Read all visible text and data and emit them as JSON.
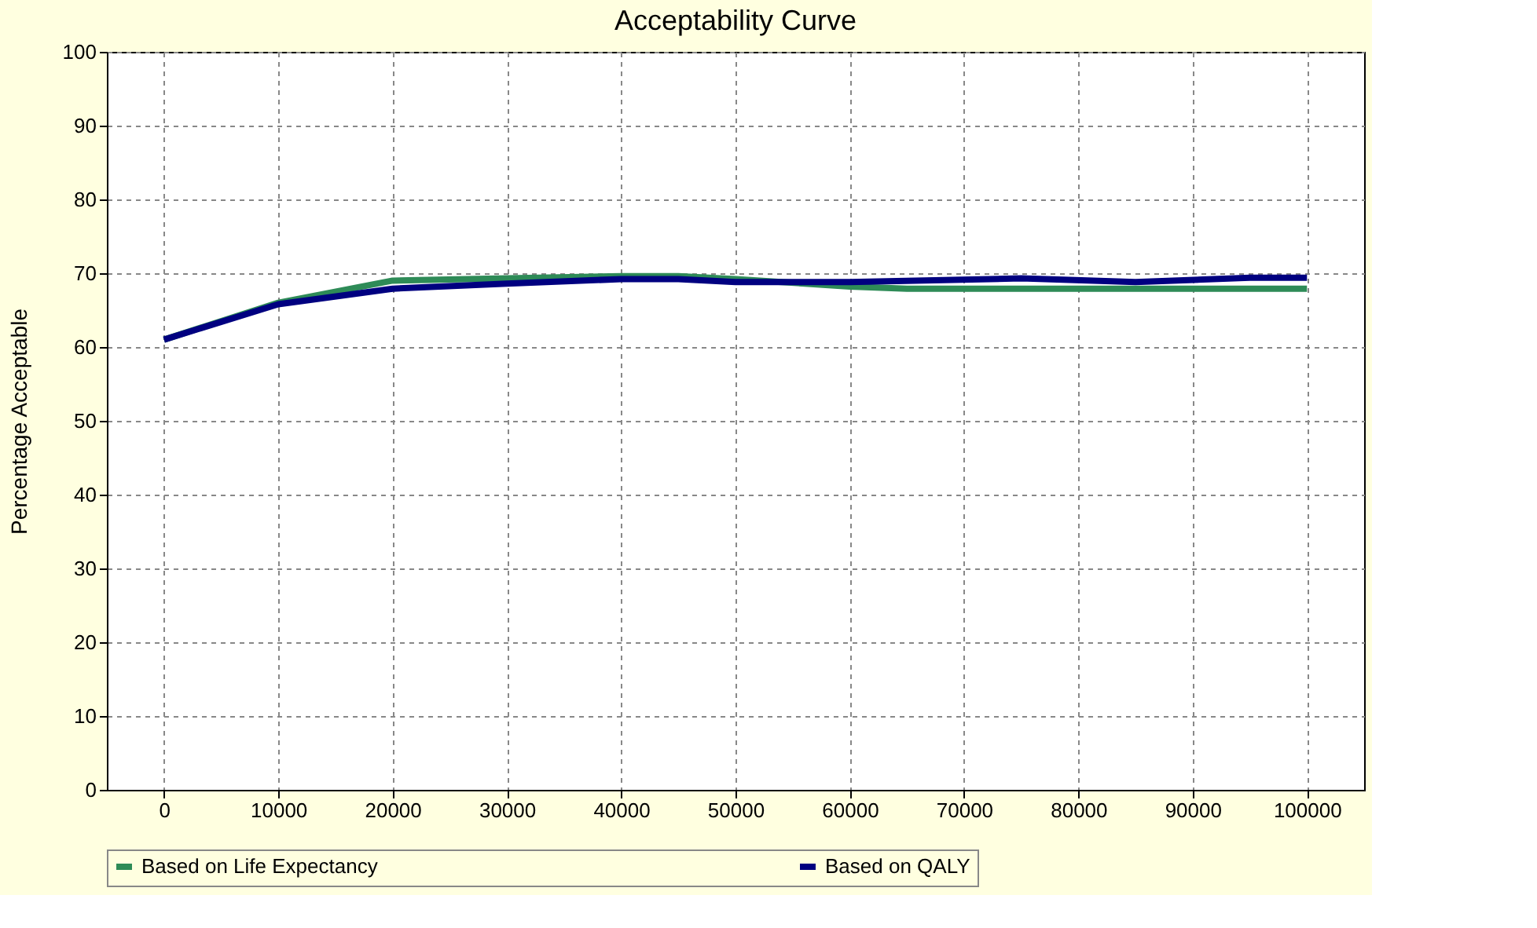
{
  "chart_data": {
    "type": "line",
    "title": "Acceptability Curve",
    "ylabel": "Percentage Acceptable",
    "xlim": [
      -5000,
      105000
    ],
    "xticks": [
      0,
      10000,
      20000,
      30000,
      40000,
      50000,
      60000,
      70000,
      80000,
      90000,
      100000
    ],
    "ylim": [
      0,
      100
    ],
    "yticks": [
      0,
      10,
      20,
      30,
      40,
      50,
      60,
      70,
      80,
      90,
      100
    ],
    "grid": true,
    "legend": "bottom",
    "marker": "none",
    "line_style": "solid",
    "series": [
      {
        "name": "Based on Life Expectancy",
        "color": "#2e8b57",
        "x": [
          0,
          10000,
          20000,
          30000,
          40000,
          45000,
          50000,
          60000,
          65000,
          100000
        ],
        "values": [
          61,
          66,
          69,
          69.3,
          69.6,
          69.6,
          69.2,
          68.2,
          67.9,
          67.9
        ]
      },
      {
        "name": "Based on QALY",
        "color": "#000080",
        "x": [
          0,
          10000,
          20000,
          30000,
          40000,
          45000,
          50000,
          60000,
          75000,
          85000,
          95000,
          100000
        ],
        "values": [
          61,
          65.8,
          67.9,
          68.6,
          69.2,
          69.2,
          68.8,
          68.8,
          69.3,
          68.8,
          69.4,
          69.4
        ]
      }
    ]
  }
}
